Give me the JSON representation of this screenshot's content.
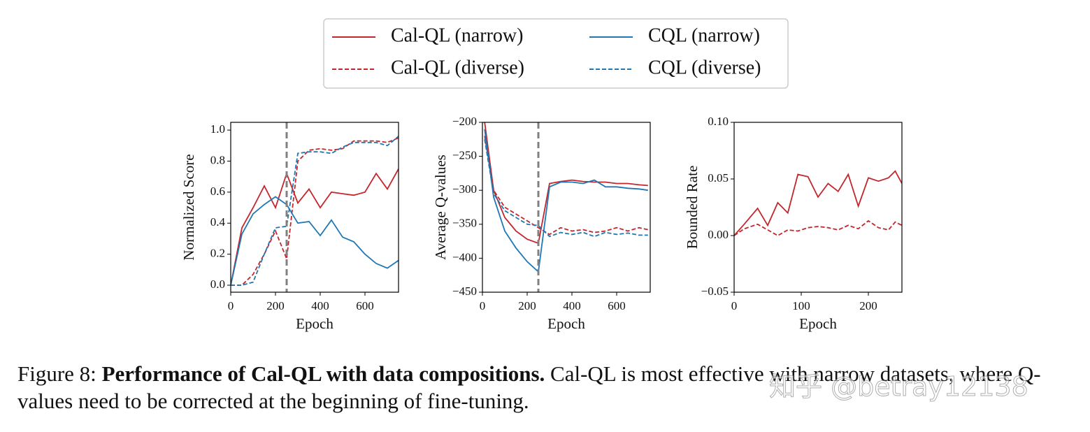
{
  "chart_data": [
    {
      "type": "line",
      "ylabel": "Normalized Score",
      "xlabel": "Epoch",
      "x": [
        0,
        50,
        100,
        150,
        200,
        250,
        300,
        350,
        400,
        450,
        500,
        550,
        600,
        650,
        700,
        750
      ],
      "xlim": [
        0,
        750
      ],
      "xticks": [
        0,
        200,
        400,
        600
      ],
      "ylim": [
        -0.045,
        1.05
      ],
      "yticks": [
        {
          "value": 0,
          "label": "0.0"
        },
        {
          "value": 0.2,
          "label": "0.2"
        },
        {
          "value": 0.4,
          "label": "0.4"
        },
        {
          "value": 0.6,
          "label": "0.6"
        },
        {
          "value": 0.8,
          "label": "0.8"
        },
        {
          "value": 1,
          "label": "1.0"
        }
      ],
      "vline": 250,
      "series": [
        {
          "name": "Cal-QL (narrow)",
          "color": "#c4262c",
          "dashed": false,
          "values": [
            0,
            0.37,
            0.5,
            0.64,
            0.5,
            0.72,
            0.53,
            0.62,
            0.5,
            0.6,
            0.59,
            0.58,
            0.6,
            0.72,
            0.62,
            0.75
          ]
        },
        {
          "name": "Cal-QL (diverse)",
          "color": "#c4262c",
          "dashed": true,
          "values": [
            0,
            0,
            0.07,
            0.2,
            0.35,
            0.17,
            0.8,
            0.87,
            0.88,
            0.87,
            0.88,
            0.93,
            0.93,
            0.93,
            0.92,
            0.95
          ]
        },
        {
          "name": "CQL (narrow)",
          "color": "#1f77b4",
          "dashed": false,
          "values": [
            0,
            0.33,
            0.46,
            0.52,
            0.57,
            0.52,
            0.4,
            0.41,
            0.32,
            0.42,
            0.31,
            0.28,
            0.2,
            0.14,
            0.11,
            0.16
          ]
        },
        {
          "name": "CQL (diverse)",
          "color": "#1f77b4",
          "dashed": true,
          "values": [
            0,
            0,
            0.02,
            0.2,
            0.37,
            0.38,
            0.85,
            0.86,
            0.86,
            0.85,
            0.89,
            0.92,
            0.92,
            0.92,
            0.9,
            0.96
          ]
        }
      ]
    },
    {
      "type": "line",
      "ylabel": "Average Q-values",
      "xlabel": "Epoch",
      "x": [
        10,
        50,
        100,
        150,
        200,
        250,
        300,
        350,
        400,
        450,
        500,
        550,
        600,
        650,
        700,
        740
      ],
      "xlim": [
        0,
        750
      ],
      "xticks": [
        0,
        200,
        400,
        600
      ],
      "ylim": [
        -450,
        -200
      ],
      "yticks": [
        {
          "value": -450,
          "label": "−450"
        },
        {
          "value": -400,
          "label": "−400"
        },
        {
          "value": -350,
          "label": "−350"
        },
        {
          "value": -300,
          "label": "−300"
        },
        {
          "value": -250,
          "label": "−250"
        },
        {
          "value": -200,
          "label": "−200"
        }
      ],
      "vline": 250,
      "series": [
        {
          "color": "#c4262c",
          "dashed": false,
          "values": [
            -200,
            -300,
            -340,
            -360,
            -372,
            -378,
            -290,
            -287,
            -285,
            -287,
            -288,
            -288,
            -290,
            -290,
            -292,
            -293
          ]
        },
        {
          "color": "#c4262c",
          "dashed": true,
          "values": [
            -220,
            -300,
            -325,
            -335,
            -345,
            -355,
            -365,
            -355,
            -360,
            -358,
            -362,
            -360,
            -355,
            -360,
            -355,
            -358
          ]
        },
        {
          "color": "#1f77b4",
          "dashed": false,
          "values": [
            -210,
            -310,
            -360,
            -385,
            -405,
            -420,
            -295,
            -288,
            -288,
            -290,
            -285,
            -295,
            -295,
            -297,
            -298,
            -300
          ]
        },
        {
          "color": "#1f77b4",
          "dashed": true,
          "values": [
            -225,
            -305,
            -330,
            -340,
            -350,
            -352,
            -368,
            -362,
            -365,
            -362,
            -368,
            -362,
            -365,
            -363,
            -366,
            -366
          ]
        }
      ]
    },
    {
      "type": "line",
      "ylabel": "Bounded Rate",
      "xlabel": "Epoch",
      "x": [
        0,
        15,
        35,
        50,
        65,
        80,
        95,
        110,
        125,
        140,
        155,
        170,
        185,
        200,
        215,
        230,
        240,
        250
      ],
      "xlim": [
        0,
        250
      ],
      "xticks": [
        0,
        100,
        200
      ],
      "ylim": [
        -0.05,
        0.1
      ],
      "yticks": [
        {
          "value": -0.05,
          "label": "−0.05"
        },
        {
          "value": 0,
          "label": "0.00"
        },
        {
          "value": 0.05,
          "label": "0.05"
        },
        {
          "value": 0.1,
          "label": "0.10"
        }
      ],
      "series": [
        {
          "color": "#c4262c",
          "dashed": false,
          "values": [
            0,
            0.01,
            0.024,
            0.009,
            0.029,
            0.02,
            0.054,
            0.052,
            0.034,
            0.046,
            0.039,
            0.054,
            0.026,
            0.051,
            0.048,
            0.051,
            0.057,
            0.046
          ]
        },
        {
          "color": "#c4262c",
          "dashed": true,
          "values": [
            0,
            0.006,
            0.01,
            0.005,
            0,
            0.005,
            0.004,
            0.007,
            0.008,
            0.007,
            0.005,
            0.009,
            0.006,
            0.013,
            0.007,
            0.005,
            0.012,
            0.009
          ]
        }
      ]
    }
  ],
  "caption": {
    "label": "Figure 8:",
    "bold": "Performance of Cal-QL with data compositions.",
    "text": "Cal-QL is most effective with narrow datasets, where Q-values need to be corrected at the beginning of fine-tuning."
  },
  "watermark": "知乎 @betray12138"
}
